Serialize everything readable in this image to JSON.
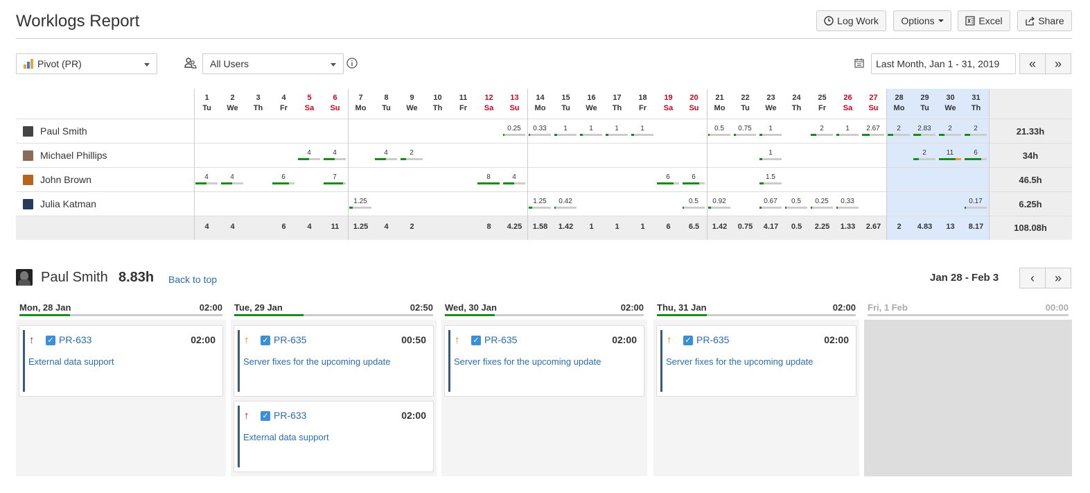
{
  "header": {
    "title": "Worklogs Report",
    "log_work": "Log Work",
    "options": "Options",
    "excel": "Excel",
    "share": "Share"
  },
  "filters": {
    "view": "Pivot (PR)",
    "users": "All Users",
    "period": "Last Month, Jan 1 - 31, 2019"
  },
  "grid": {
    "days": [
      {
        "n": "1",
        "d": "Tu"
      },
      {
        "n": "2",
        "d": "We"
      },
      {
        "n": "3",
        "d": "Th"
      },
      {
        "n": "4",
        "d": "Fr"
      },
      {
        "n": "5",
        "d": "Sa"
      },
      {
        "n": "6",
        "d": "Su"
      },
      {
        "n": "7",
        "d": "Mo"
      },
      {
        "n": "8",
        "d": "Tu"
      },
      {
        "n": "9",
        "d": "We"
      },
      {
        "n": "10",
        "d": "Th"
      },
      {
        "n": "11",
        "d": "Fr"
      },
      {
        "n": "12",
        "d": "Sa"
      },
      {
        "n": "13",
        "d": "Su"
      },
      {
        "n": "14",
        "d": "Mo"
      },
      {
        "n": "15",
        "d": "Tu"
      },
      {
        "n": "16",
        "d": "We"
      },
      {
        "n": "17",
        "d": "Th"
      },
      {
        "n": "18",
        "d": "Fr"
      },
      {
        "n": "19",
        "d": "Sa"
      },
      {
        "n": "20",
        "d": "Su"
      },
      {
        "n": "21",
        "d": "Mo"
      },
      {
        "n": "22",
        "d": "Tu"
      },
      {
        "n": "23",
        "d": "We"
      },
      {
        "n": "24",
        "d": "Th"
      },
      {
        "n": "25",
        "d": "Fr"
      },
      {
        "n": "26",
        "d": "Sa"
      },
      {
        "n": "27",
        "d": "Su"
      },
      {
        "n": "28",
        "d": "Mo"
      },
      {
        "n": "29",
        "d": "Tu"
      },
      {
        "n": "30",
        "d": "We"
      },
      {
        "n": "31",
        "d": "Th"
      }
    ],
    "users": [
      {
        "name": "Paul Smith",
        "total": "21.33h",
        "avatar_color": "#444",
        "cells": {
          "13": "0.25",
          "14": "0.33",
          "15": "1",
          "16": "1",
          "17": "1",
          "18": "1",
          "21": "0.5",
          "22": "0.75",
          "23": "1",
          "25": "2",
          "26": "1",
          "27": "2.67",
          "28": "2",
          "29": "2.83",
          "30": "2",
          "31": "2"
        }
      },
      {
        "name": "Michael Phillips",
        "total": "34h",
        "avatar_color": "#8a6a5a",
        "cells": {
          "5": "4",
          "6": "4",
          "8": "4",
          "9": "2",
          "23": "1",
          "29": "2",
          "30": "11",
          "31": "6"
        }
      },
      {
        "name": "John Brown",
        "total": "46.5h",
        "avatar_color": "#b5651d",
        "cells": {
          "1": "4",
          "2": "4",
          "4": "6",
          "6": "7",
          "12": "8",
          "13": "4",
          "19": "6",
          "20": "6",
          "23": "1.5"
        }
      },
      {
        "name": "Julia Katman",
        "total": "6.25h",
        "avatar_color": "#2a3a5a",
        "cells": {
          "7": "1.25",
          "14": "1.25",
          "15": "0.42",
          "20": "0.5",
          "21": "0.92",
          "23": "0.67",
          "24": "0.5",
          "25": "0.25",
          "26": "0.33",
          "31": "0.17"
        }
      }
    ],
    "totals": {
      "1": "4",
      "2": "4",
      "4": "6",
      "5": "4",
      "6": "11",
      "7": "1.25",
      "8": "4",
      "9": "2",
      "12": "8",
      "13": "4.25",
      "14": "1.58",
      "15": "1.42",
      "16": "1",
      "17": "1",
      "18": "1",
      "19": "6",
      "20": "6.5",
      "21": "1.42",
      "22": "0.75",
      "23": "4.17",
      "24": "0.5",
      "25": "2.25",
      "26": "1.33",
      "27": "2.67",
      "28": "2",
      "29": "4.83",
      "30": "13",
      "31": "8.17"
    },
    "grand_total": "108.08h"
  },
  "detail": {
    "name": "Paul Smith",
    "hours": "8.83h",
    "back_to_top": "Back to top",
    "range": "Jan 28 - Feb 3",
    "days": [
      {
        "label": "Mon, 28 Jan",
        "time": "02:00",
        "progress": 0.25,
        "cards": [
          {
            "priority": "high",
            "key": "PR-633",
            "time": "02:00",
            "title": "External data support"
          }
        ]
      },
      {
        "label": "Tue, 29 Jan",
        "time": "02:50",
        "progress": 0.35,
        "cards": [
          {
            "priority": "medium",
            "key": "PR-635",
            "time": "00:50",
            "title": "Server fixes for the upcoming update"
          },
          {
            "priority": "high",
            "key": "PR-633",
            "time": "02:00",
            "title": "External data support"
          }
        ]
      },
      {
        "label": "Wed, 30 Jan",
        "time": "02:00",
        "progress": 0.25,
        "cards": [
          {
            "priority": "medium",
            "key": "PR-635",
            "time": "02:00",
            "title": "Server fixes for the upcoming update"
          }
        ]
      },
      {
        "label": "Thu, 31 Jan",
        "time": "02:00",
        "progress": 0.25,
        "cards": [
          {
            "priority": "medium",
            "key": "PR-635",
            "time": "02:00",
            "title": "Server fixes for the upcoming update"
          }
        ]
      },
      {
        "label": "Fri, 1 Feb",
        "time": "00:00",
        "progress": 0,
        "cards": []
      }
    ]
  }
}
